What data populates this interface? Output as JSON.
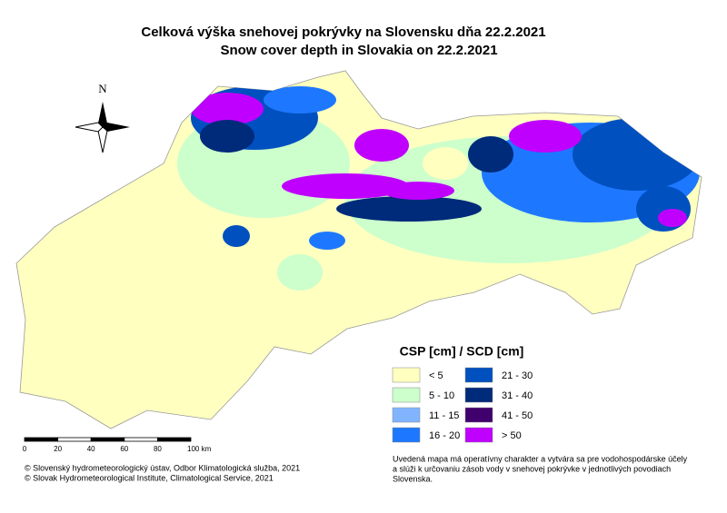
{
  "title": "Celková výška snehovej pokrývky na Slovensku dňa 22.2.2021",
  "subtitle": "Snow cover depth in Slovakia on 22.2.2021",
  "north": "N",
  "legend": {
    "title": "CSP [cm] / SCD [cm]",
    "items": [
      {
        "label": "< 5",
        "color": "#ffffc0"
      },
      {
        "label": "5 - 10",
        "color": "#ccffcc"
      },
      {
        "label": "11 - 15",
        "color": "#80b4ff"
      },
      {
        "label": "16 - 20",
        "color": "#1e78ff"
      },
      {
        "label": "21 - 30",
        "color": "#0050c0"
      },
      {
        "label": "31 - 40",
        "color": "#002a7a"
      },
      {
        "label": "41 - 50",
        "color": "#40006e"
      },
      {
        "label": "> 50",
        "color": "#c000ff"
      }
    ]
  },
  "scale": [
    "0",
    "20",
    "40",
    "60",
    "80",
    "100 km"
  ],
  "credits": [
    "© Slovenský hydrometeorologický ústav, Odbor Klimatologická služba, 2021",
    "© Slovak Hydrometeorological Institute, Climatological Service, 2021"
  ],
  "note": [
    "Uvedená mapa má operatívny charakter a vytvára sa pre vodohospodárske účely",
    " a slúži k určovaniu zásob vody v snehovej pokrývke v jednotlivých povodiach",
    "Slovenska."
  ]
}
